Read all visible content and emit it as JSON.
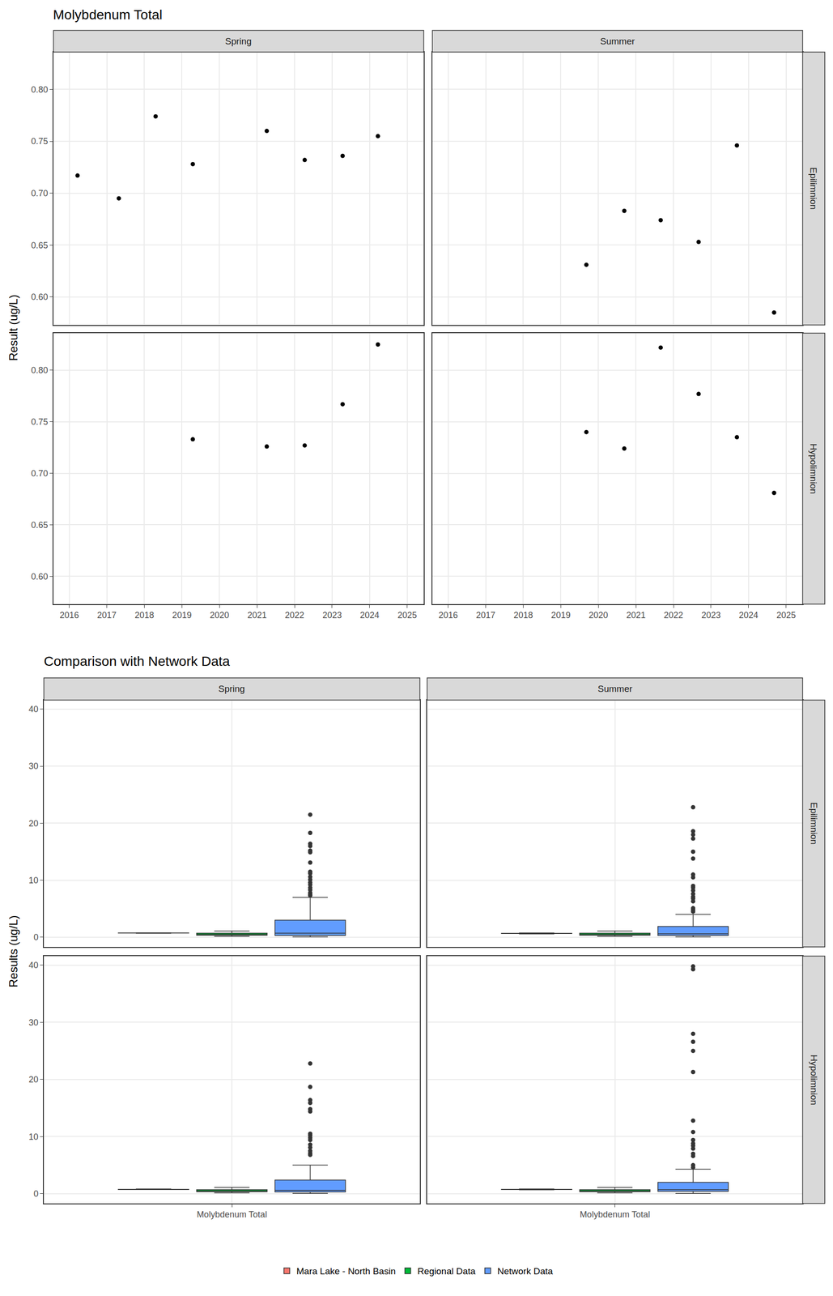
{
  "chart_data": [
    {
      "type": "scatter",
      "title": "Molybdenum Total",
      "y_label": "Result (ug/L)",
      "columns": [
        "Spring",
        "Summer"
      ],
      "rows": [
        "Epilimnion",
        "Hypolimnion"
      ],
      "color": "#000000",
      "grid": true,
      "xlim": [
        2015.58,
        2025.44
      ],
      "xticks": [
        2016,
        2017,
        2018,
        2019,
        2020,
        2021,
        2022,
        2023,
        2024,
        2025
      ],
      "ylim": [
        0.573,
        0.836
      ],
      "yticks": [
        {
          "value": 0.6,
          "label": "0.60"
        },
        {
          "value": 0.65,
          "label": "0.65"
        },
        {
          "value": 0.7,
          "label": "0.70"
        },
        {
          "value": 0.75,
          "label": "0.75"
        },
        {
          "value": 0.8,
          "label": "0.80"
        }
      ],
      "panels": [
        {
          "column": "Spring",
          "row": "Epilimnion",
          "x": [
            2016.22,
            2017.32,
            2018.3,
            2019.29,
            2021.26,
            2022.27,
            2023.28,
            2024.22
          ],
          "values": [
            0.717,
            0.695,
            0.774,
            0.728,
            0.76,
            0.732,
            0.736,
            0.755
          ]
        },
        {
          "column": "Summer",
          "row": "Epilimnion",
          "x": [
            2019.68,
            2020.69,
            2021.66,
            2022.67,
            2023.69,
            2024.68
          ],
          "values": [
            0.631,
            0.683,
            0.674,
            0.653,
            0.746,
            0.585
          ]
        },
        {
          "column": "Spring",
          "row": "Hypolimnion",
          "x": [
            2019.29,
            2021.26,
            2022.27,
            2023.28,
            2024.22
          ],
          "values": [
            0.733,
            0.726,
            0.727,
            0.767,
            0.825
          ]
        },
        {
          "column": "Summer",
          "row": "Hypolimnion",
          "x": [
            2019.68,
            2020.69,
            2021.66,
            2022.67,
            2023.69,
            2024.68
          ],
          "values": [
            0.74,
            0.724,
            0.822,
            0.777,
            0.735,
            0.681
          ]
        }
      ]
    },
    {
      "type": "box",
      "title": "Comparison with Network Data",
      "y_label": "Results (ug/L)",
      "categories": [
        "Molybdenum Total"
      ],
      "columns": [
        "Spring",
        "Summer"
      ],
      "rows": [
        "Epilimnion",
        "Hypolimnion"
      ],
      "grid": true,
      "legend": "bottom",
      "ylim": [
        -1.7,
        41.6
      ],
      "yticks": [
        0,
        10,
        20,
        30,
        40
      ],
      "series": [
        {
          "name": "Mara Lake - North Basin",
          "color": "#F8766D"
        },
        {
          "name": "Regional Data",
          "color": "#00BA38"
        },
        {
          "name": "Network Data",
          "color": "#619CFF"
        }
      ],
      "panels": [
        {
          "column": "Spring",
          "row": "Epilimnion",
          "boxes": [
            {
              "q1": 0.725,
              "median": 0.734,
              "q3": 0.756,
              "lowerfence": 0.695,
              "upperfence": 0.774,
              "outliers": []
            },
            {
              "q1": 0.35,
              "median": 0.5,
              "q3": 0.7,
              "lowerfence": 0.15,
              "upperfence": 1.1,
              "outliers": []
            },
            {
              "q1": 0.3,
              "median": 0.7,
              "q3": 3.0,
              "lowerfence": 0.05,
              "upperfence": 7.0,
              "outliers": [
                21.5,
                18.3,
                16.4,
                16.0,
                15.2,
                14.9,
                13.1,
                11.5,
                11.2,
                10.6,
                10.1,
                9.6,
                9.2,
                8.7,
                8.3,
                7.8,
                7.5,
                7.3
              ]
            }
          ]
        },
        {
          "column": "Summer",
          "row": "Epilimnion",
          "boxes": [
            {
              "q1": 0.637,
              "median": 0.664,
              "q3": 0.681,
              "lowerfence": 0.585,
              "upperfence": 0.746,
              "outliers": []
            },
            {
              "q1": 0.35,
              "median": 0.5,
              "q3": 0.7,
              "lowerfence": 0.15,
              "upperfence": 1.1,
              "outliers": []
            },
            {
              "q1": 0.3,
              "median": 0.6,
              "q3": 1.9,
              "lowerfence": 0.05,
              "upperfence": 4.0,
              "outliers": [
                22.8,
                18.6,
                18.0,
                17.3,
                15.0,
                13.8,
                11.0,
                10.5,
                9.0,
                8.7,
                8.2,
                7.6,
                7.1,
                6.8,
                6.3,
                5.1,
                4.8,
                4.5
              ]
            }
          ]
        },
        {
          "column": "Spring",
          "row": "Hypolimnion",
          "boxes": [
            {
              "q1": 0.727,
              "median": 0.733,
              "q3": 0.767,
              "lowerfence": 0.726,
              "upperfence": 0.825,
              "outliers": []
            },
            {
              "q1": 0.35,
              "median": 0.5,
              "q3": 0.7,
              "lowerfence": 0.15,
              "upperfence": 1.1,
              "outliers": []
            },
            {
              "q1": 0.3,
              "median": 0.6,
              "q3": 2.4,
              "lowerfence": 0.05,
              "upperfence": 5.0,
              "outliers": [
                22.8,
                18.7,
                16.4,
                15.9,
                14.8,
                14.4,
                10.5,
                10.2,
                9.8,
                9.4,
                8.6,
                8.1,
                7.5,
                7.1,
                6.8
              ]
            }
          ]
        },
        {
          "column": "Summer",
          "row": "Hypolimnion",
          "boxes": [
            {
              "q1": 0.727,
              "median": 0.738,
              "q3": 0.768,
              "lowerfence": 0.681,
              "upperfence": 0.822,
              "outliers": []
            },
            {
              "q1": 0.35,
              "median": 0.5,
              "q3": 0.7,
              "lowerfence": 0.15,
              "upperfence": 1.1,
              "outliers": []
            },
            {
              "q1": 0.4,
              "median": 0.7,
              "q3": 2.0,
              "lowerfence": 0.05,
              "upperfence": 4.3,
              "outliers": [
                39.8,
                39.3,
                28.0,
                26.6,
                25.0,
                21.3,
                12.8,
                10.8,
                9.4,
                8.8,
                8.4,
                7.9,
                7.0,
                6.6,
                5.0,
                4.6
              ]
            }
          ]
        }
      ]
    }
  ]
}
